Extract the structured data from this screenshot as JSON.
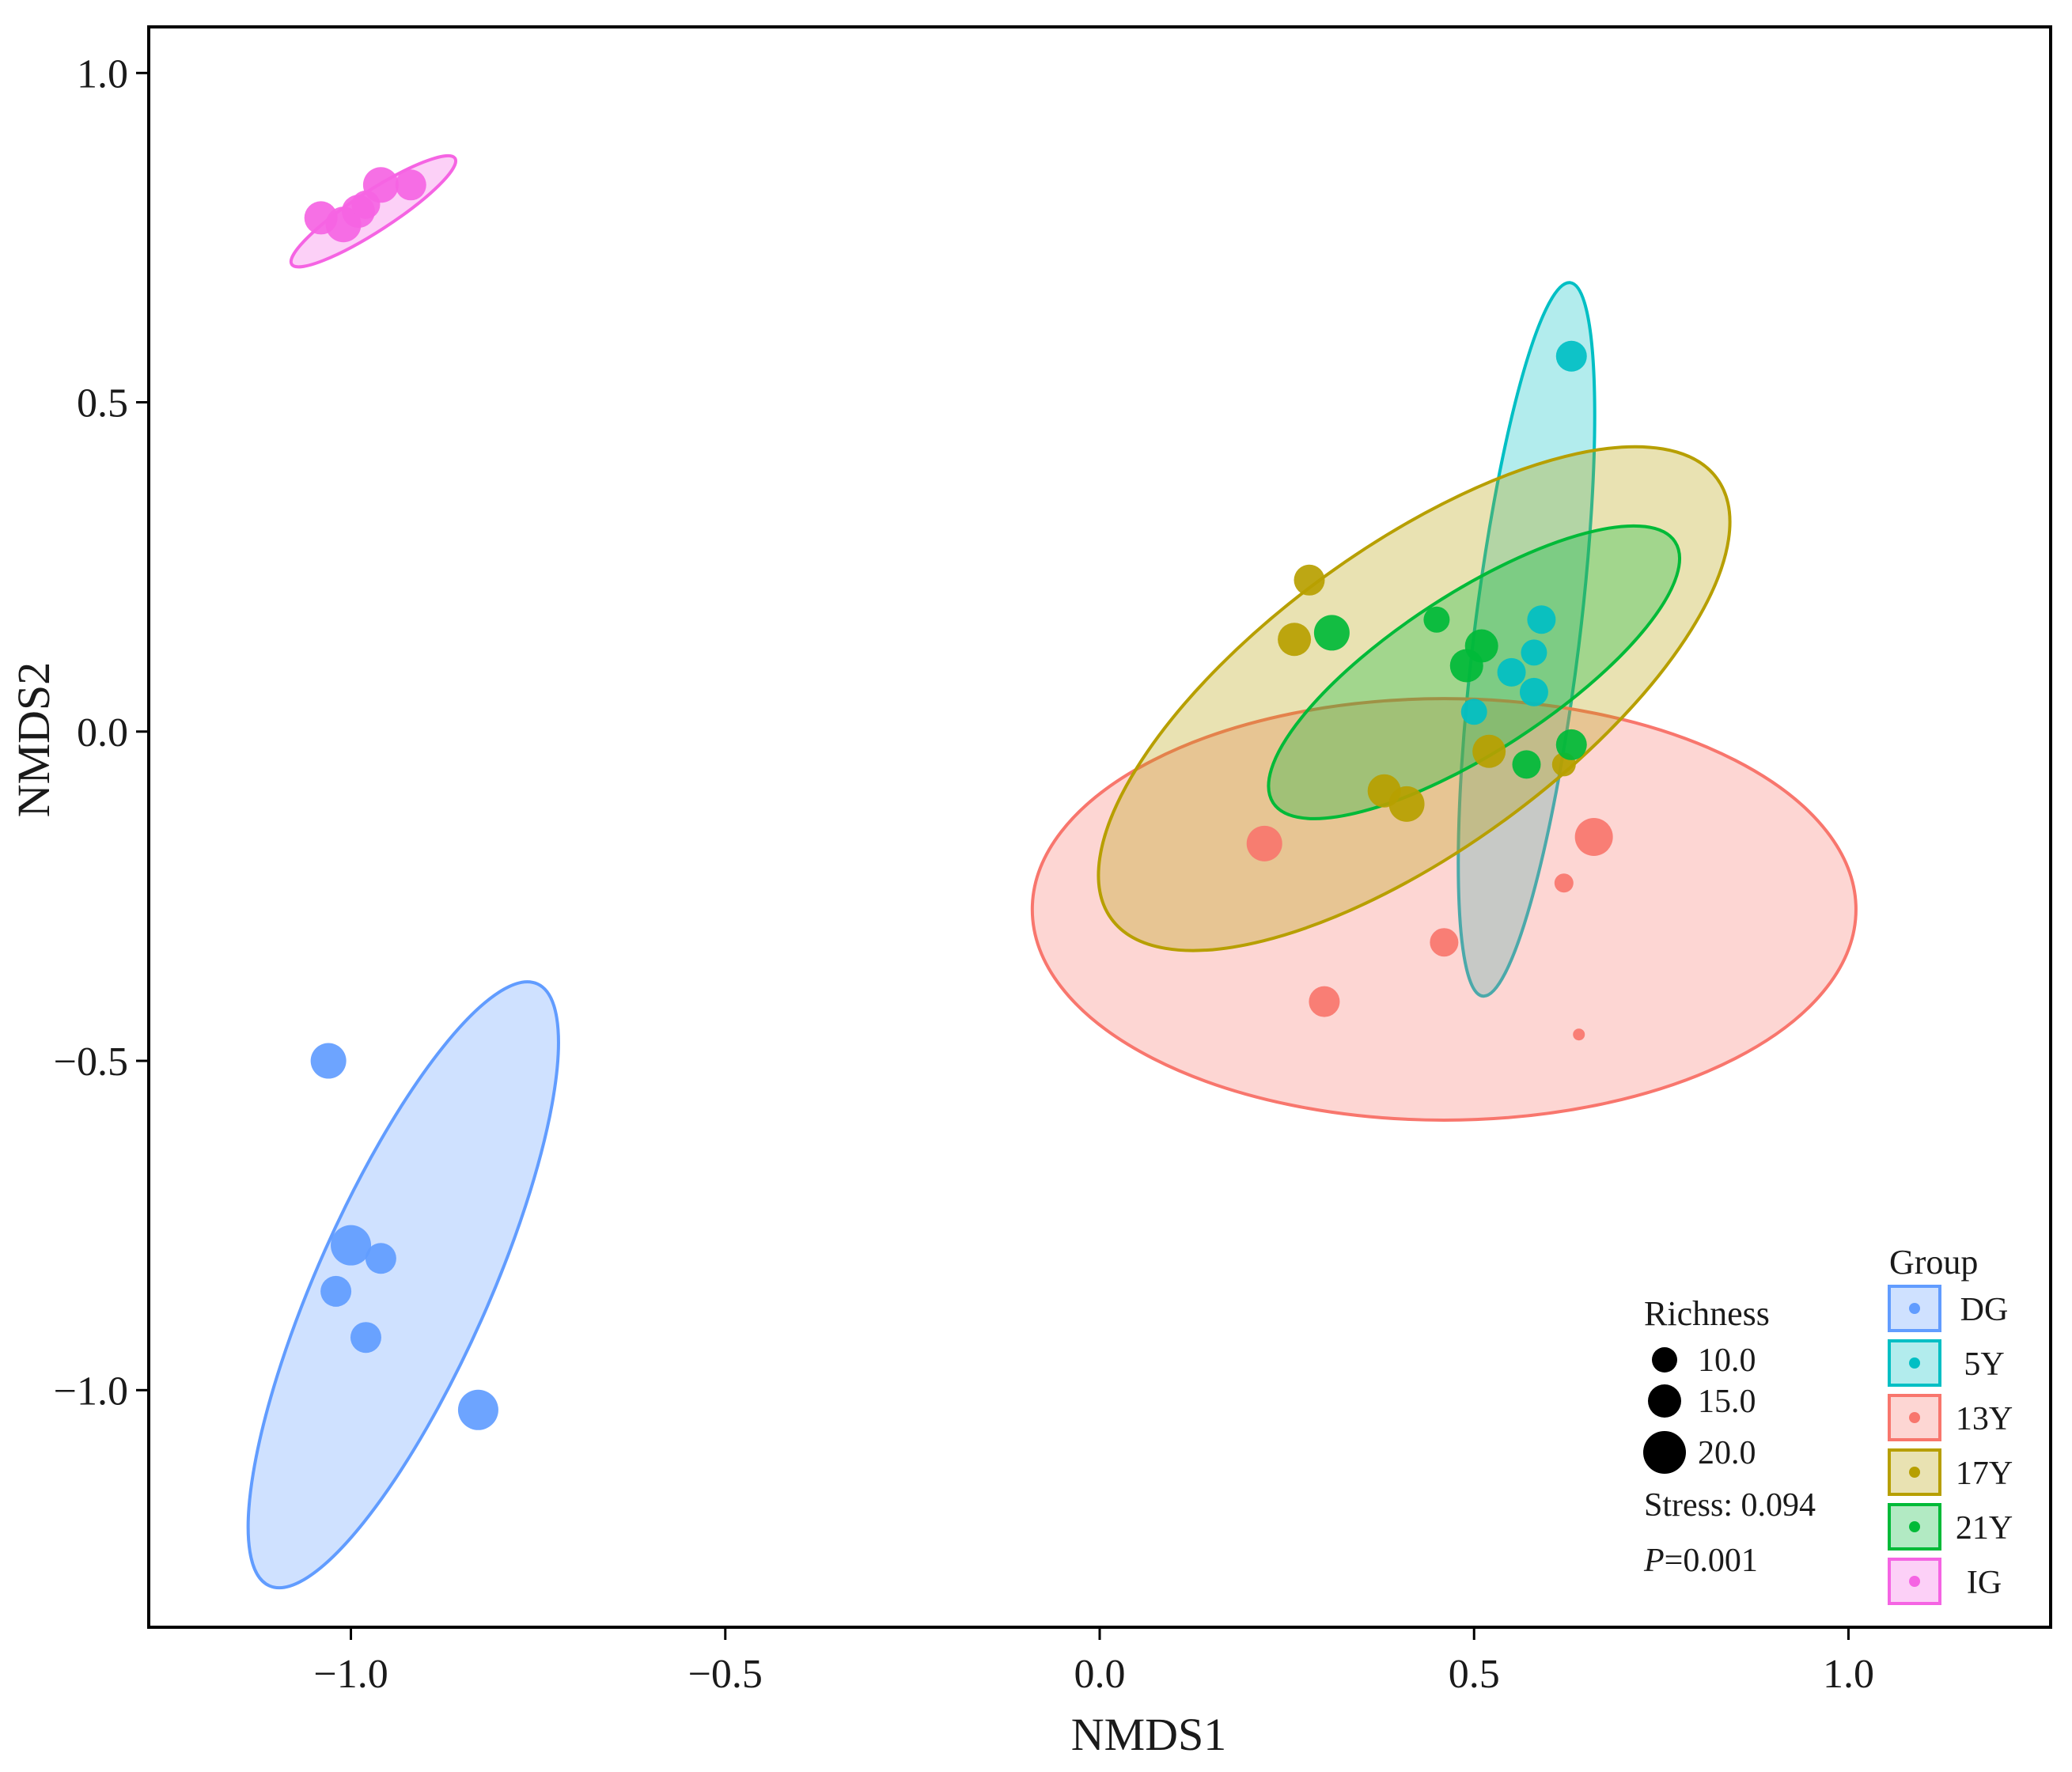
{
  "chart_data": {
    "type": "scatter",
    "title": "",
    "xlabel": "NMDS1",
    "ylabel": "NMDS2",
    "xlim": [
      -1.27,
      1.27
    ],
    "ylim": [
      -1.36,
      1.07
    ],
    "xticks": [
      -1.0,
      -0.5,
      0.0,
      0.5,
      1.0
    ],
    "xtick_labels": [
      "−1.0",
      "−0.5",
      "0.0",
      "0.5",
      "1.0"
    ],
    "yticks": [
      1.0,
      0.5,
      0.0,
      -0.5,
      -1.0
    ],
    "ytick_labels": [
      "1.0",
      "0.5",
      "0.0",
      "−0.5",
      "−1.0"
    ],
    "grid": false,
    "legend_group_title": "Group",
    "legend_size_title": "Richness",
    "size_legend": [
      {
        "label": "10.0",
        "value": 10
      },
      {
        "label": "15.0",
        "value": 15
      },
      {
        "label": "20.0",
        "value": 20
      }
    ],
    "annotations": {
      "stress": "Stress: 0.094",
      "p_italic": "P",
      "p_rest": "=0.001"
    },
    "series": [
      {
        "name": "DG",
        "color": "#619CFF",
        "ellipse": {
          "cx": -0.93,
          "cy": -0.84,
          "rx": 0.44,
          "ry": 0.13,
          "angle_deg": 66
        },
        "points": [
          {
            "x": -1.03,
            "y": -0.5,
            "r": 15
          },
          {
            "x": -1.0,
            "y": -0.78,
            "r": 17
          },
          {
            "x": -0.96,
            "y": -0.8,
            "r": 13
          },
          {
            "x": -1.02,
            "y": -0.85,
            "r": 13
          },
          {
            "x": -0.98,
            "y": -0.92,
            "r": 13
          },
          {
            "x": -0.83,
            "y": -1.03,
            "r": 17
          }
        ]
      },
      {
        "name": "5Y",
        "color": "#00BFC4",
        "ellipse": {
          "cx": 0.57,
          "cy": 0.14,
          "rx": 0.48,
          "ry": 0.08,
          "angle_deg": 83
        },
        "points": [
          {
            "x": 0.63,
            "y": 0.57,
            "r": 13
          },
          {
            "x": 0.59,
            "y": 0.17,
            "r": 12
          },
          {
            "x": 0.58,
            "y": 0.12,
            "r": 11
          },
          {
            "x": 0.55,
            "y": 0.09,
            "r": 12
          },
          {
            "x": 0.58,
            "y": 0.06,
            "r": 12
          },
          {
            "x": 0.5,
            "y": 0.03,
            "r": 11
          }
        ]
      },
      {
        "name": "13Y",
        "color": "#F8766D",
        "ellipse": {
          "cx": 0.46,
          "cy": -0.27,
          "rx": 0.55,
          "ry": 0.32,
          "angle_deg": 0
        },
        "points": [
          {
            "x": 0.22,
            "y": -0.17,
            "r": 15
          },
          {
            "x": 0.66,
            "y": -0.16,
            "r": 16
          },
          {
            "x": 0.62,
            "y": -0.23,
            "r": 8
          },
          {
            "x": 0.46,
            "y": -0.32,
            "r": 12
          },
          {
            "x": 0.3,
            "y": -0.41,
            "r": 13
          },
          {
            "x": 0.64,
            "y": -0.46,
            "r": 5
          }
        ]
      },
      {
        "name": "17Y",
        "color": "#B79F00",
        "ellipse": {
          "cx": 0.42,
          "cy": 0.05,
          "rx": 0.5,
          "ry": 0.23,
          "angle_deg": 36
        },
        "points": [
          {
            "x": 0.28,
            "y": 0.23,
            "r": 13
          },
          {
            "x": 0.26,
            "y": 0.14,
            "r": 14
          },
          {
            "x": 0.38,
            "y": -0.09,
            "r": 14
          },
          {
            "x": 0.41,
            "y": -0.11,
            "r": 15
          },
          {
            "x": 0.52,
            "y": -0.03,
            "r": 14
          },
          {
            "x": 0.62,
            "y": -0.05,
            "r": 10
          }
        ]
      },
      {
        "name": "21Y",
        "color": "#00BA38",
        "ellipse": {
          "cx": 0.5,
          "cy": 0.09,
          "rx": 0.32,
          "ry": 0.12,
          "angle_deg": 33
        },
        "points": [
          {
            "x": 0.31,
            "y": 0.15,
            "r": 15
          },
          {
            "x": 0.45,
            "y": 0.17,
            "r": 11
          },
          {
            "x": 0.51,
            "y": 0.13,
            "r": 14
          },
          {
            "x": 0.49,
            "y": 0.1,
            "r": 14
          },
          {
            "x": 0.63,
            "y": -0.02,
            "r": 13
          },
          {
            "x": 0.57,
            "y": -0.05,
            "r": 12
          }
        ]
      },
      {
        "name": "IG",
        "color": "#F564E3",
        "ellipse": {
          "cx": -0.97,
          "cy": 0.79,
          "rx": 0.13,
          "ry": 0.03,
          "angle_deg": 33
        },
        "points": [
          {
            "x": -1.04,
            "y": 0.78,
            "r": 14
          },
          {
            "x": -0.99,
            "y": 0.79,
            "r": 14
          },
          {
            "x": -1.01,
            "y": 0.77,
            "r": 15
          },
          {
            "x": -0.96,
            "y": 0.83,
            "r": 15
          },
          {
            "x": -0.92,
            "y": 0.83,
            "r": 13
          },
          {
            "x": -0.98,
            "y": 0.8,
            "r": 12
          }
        ]
      }
    ]
  }
}
